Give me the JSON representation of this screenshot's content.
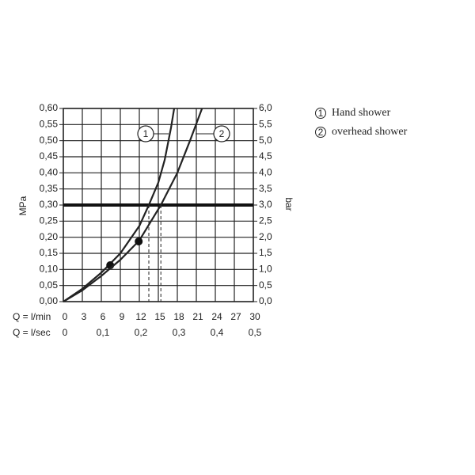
{
  "chart_data": {
    "type": "line",
    "xlabel": "Q = l/min",
    "x2label": "Q = l/sec",
    "ylabel": "MPa",
    "y2label": "bar",
    "xlim": [
      0,
      30
    ],
    "xticks": [
      0,
      3,
      6,
      9,
      12,
      15,
      18,
      21,
      24,
      27,
      30
    ],
    "x2lim": [
      0,
      0.5
    ],
    "x2ticks": [
      0,
      {
        "value": 0.1,
        "label": "0,1"
      },
      {
        "value": 0.2,
        "label": "0,2"
      },
      {
        "value": 0.3,
        "label": "0,3"
      },
      {
        "value": 0.4,
        "label": "0,4"
      },
      {
        "value": 0.5,
        "label": "0,5"
      }
    ],
    "ylim": [
      0,
      0.6
    ],
    "yticks": [
      {
        "value": 0,
        "label": "0,00"
      },
      {
        "value": 0.05,
        "label": "0,05"
      },
      {
        "value": 0.1,
        "label": "0,10"
      },
      {
        "value": 0.15,
        "label": "0,15"
      },
      {
        "value": 0.2,
        "label": "0,20"
      },
      {
        "value": 0.25,
        "label": "0,25"
      },
      {
        "value": 0.3,
        "label": "0,30"
      },
      {
        "value": 0.35,
        "label": "0,35"
      },
      {
        "value": 0.4,
        "label": "0,40"
      },
      {
        "value": 0.45,
        "label": "0,45"
      },
      {
        "value": 0.5,
        "label": "0,50"
      },
      {
        "value": 0.55,
        "label": "0,55"
      },
      {
        "value": 0.6,
        "label": "0,60"
      }
    ],
    "y2lim": [
      0,
      6
    ],
    "y2ticks": [
      {
        "value": 0,
        "label": "0,0"
      },
      {
        "value": 0.5,
        "label": "0,5"
      },
      {
        "value": 1,
        "label": "1,0"
      },
      {
        "value": 1.5,
        "label": "1,5"
      },
      {
        "value": 2,
        "label": "2,0"
      },
      {
        "value": 2.5,
        "label": "2,5"
      },
      {
        "value": 3,
        "label": "3,0"
      },
      {
        "value": 3.5,
        "label": "3,5"
      },
      {
        "value": 4,
        "label": "4,0"
      },
      {
        "value": 4.5,
        "label": "4,5"
      },
      {
        "value": 5,
        "label": "5,0"
      },
      {
        "value": 5.5,
        "label": "5,5"
      },
      {
        "value": 6,
        "label": "6,0"
      }
    ],
    "grid": true,
    "reference_y": 0.3,
    "color": "#222",
    "series": [
      {
        "name": "Hand shower",
        "label": "1",
        "x": [
          0,
          3,
          6,
          9,
          12,
          13.5,
          15,
          16,
          17,
          17.5
        ],
        "values": [
          0,
          0.04,
          0.09,
          0.15,
          0.235,
          0.3,
          0.37,
          0.44,
          0.54,
          0.6
        ],
        "marker": [
          7.4,
          0.113
        ],
        "crossing_x": 13.5
      },
      {
        "name": "overhead shower",
        "label": "2",
        "x": [
          0,
          3,
          6,
          9,
          12,
          15.4,
          18,
          20,
          21.9
        ],
        "values": [
          0,
          0.035,
          0.08,
          0.13,
          0.19,
          0.3,
          0.4,
          0.5,
          0.6
        ],
        "marker": [
          11.9,
          0.187
        ],
        "crossing_x": 15.4
      }
    ]
  }
}
